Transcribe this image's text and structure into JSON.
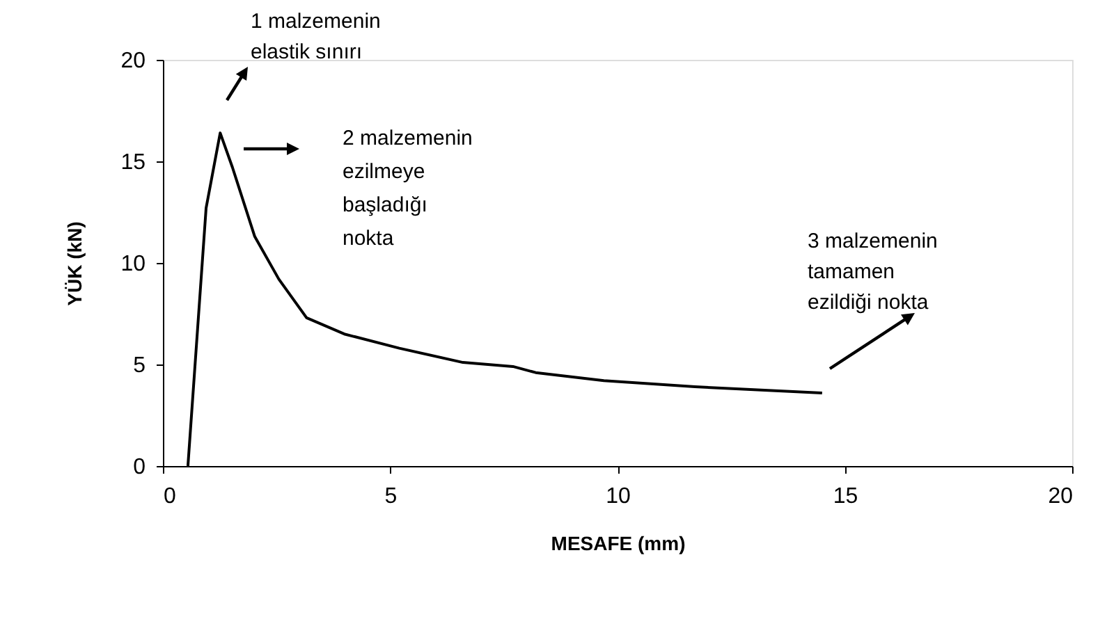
{
  "chart_data": {
    "type": "line",
    "xlabel": "MESAFE (mm)",
    "ylabel": "YÜK (kN)",
    "x": [
      0.55,
      0.95,
      1.26,
      1.53,
      2.02,
      2.55,
      3.16,
      3.99,
      5.2,
      6.6,
      7.7,
      8.2,
      9.7,
      11.7,
      14.5
    ],
    "series": [
      {
        "color": "#000000",
        "values": [
          0,
          12.7,
          16.4,
          14.7,
          11.3,
          9.2,
          7.3,
          6.5,
          5.8,
          5.1,
          4.9,
          4.6,
          4.2,
          3.9,
          3.6
        ]
      }
    ],
    "xlim": [
      0,
      20
    ],
    "xticks": [
      0,
      5,
      10,
      15,
      20
    ],
    "ylim": [
      0,
      20
    ],
    "yticks": [
      0,
      5,
      10,
      15,
      20
    ],
    "grid": false,
    "legend": false,
    "marker": "none",
    "line_style": "solid",
    "annotations": [
      "1 malzemenin\nelastik sınırı",
      "2 malzemenin\nezilmeye\nbaşladığı\nnokta",
      "3 malzemenin\ntamamen\nezildiği nokta"
    ]
  }
}
